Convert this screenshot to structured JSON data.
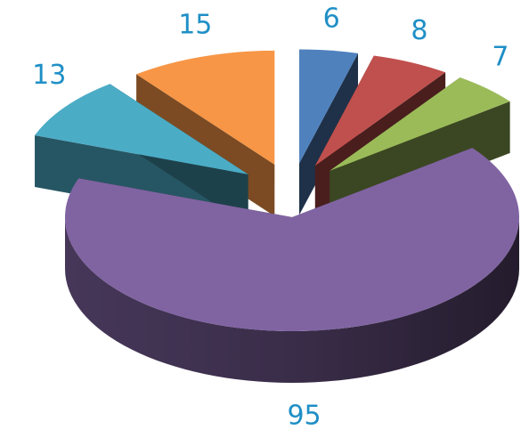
{
  "chart_data": {
    "type": "pie",
    "style": "3d-exploded",
    "title": "",
    "legend": "none",
    "label_color": "#1f8fc6",
    "slices": [
      {
        "value": 6,
        "label": "6",
        "color": "#4f81bd"
      },
      {
        "value": 8,
        "label": "8",
        "color": "#c0504d"
      },
      {
        "value": 7,
        "label": "7",
        "color": "#9bbb59"
      },
      {
        "value": 95,
        "label": "95",
        "color": "#8064a2"
      },
      {
        "value": 13,
        "label": "13",
        "color": "#4bacc6"
      },
      {
        "value": 15,
        "label": "15",
        "color": "#f79646"
      }
    ]
  }
}
